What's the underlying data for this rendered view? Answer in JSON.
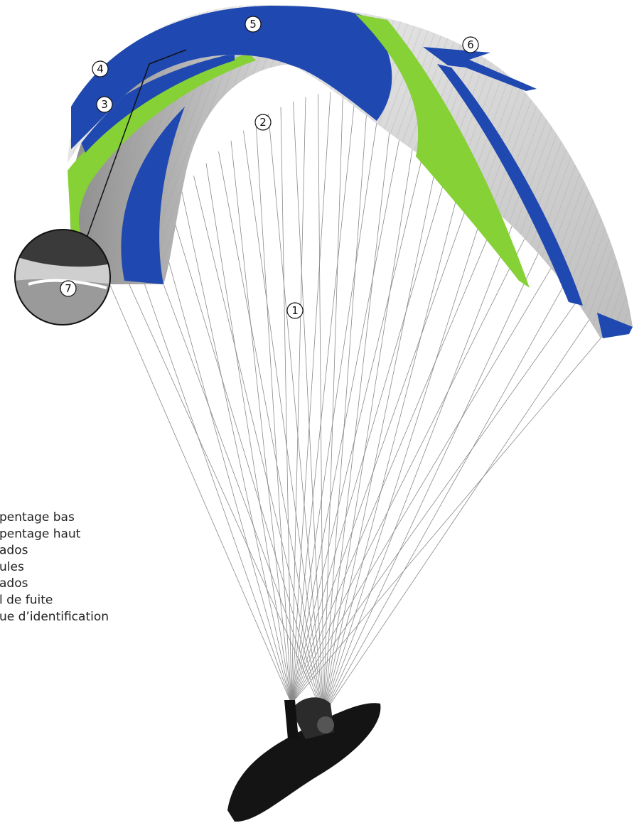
{
  "callouts": [
    "1",
    "2",
    "3",
    "4",
    "5",
    "6",
    "7"
  ],
  "legend": [
    "pentage bas",
    "pentage haut",
    "ados",
    "ules",
    "ados",
    "l de fuite",
    "ue d’identification"
  ]
}
